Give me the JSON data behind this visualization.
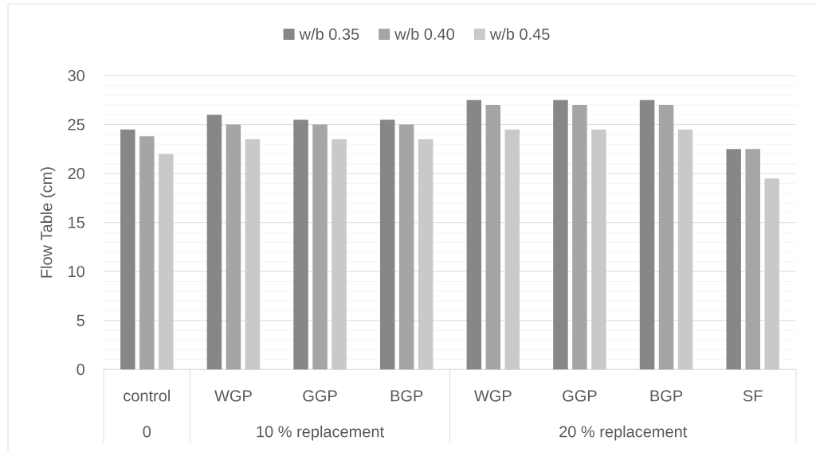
{
  "chart_data": {
    "type": "bar",
    "ylabel": "Flow Table (cm)",
    "categories": [
      "control",
      "WGP",
      "GGP",
      "BGP",
      "WGP",
      "GGP",
      "BGP",
      "SF"
    ],
    "series": [
      {
        "name": "w/b 0.35",
        "color": "#878787",
        "values": [
          24.5,
          26,
          25.5,
          25.5,
          27.5,
          27.5,
          27.5,
          22.5
        ]
      },
      {
        "name": "w/b 0.40",
        "color": "#a5a5a5",
        "values": [
          23.8,
          25,
          25,
          25,
          27,
          27,
          27,
          22.5
        ]
      },
      {
        "name": "w/b 0.45",
        "color": "#c9c9c9",
        "values": [
          22,
          23.5,
          23.5,
          23.5,
          24.5,
          24.5,
          24.5,
          19.5
        ]
      }
    ],
    "ylim": [
      0,
      30
    ],
    "yticks": [
      0,
      5,
      10,
      15,
      20,
      25,
      30
    ],
    "grid": "y",
    "legend": "top",
    "annotations": [
      "0",
      "10 % replacement",
      "20 % replacement"
    ]
  }
}
